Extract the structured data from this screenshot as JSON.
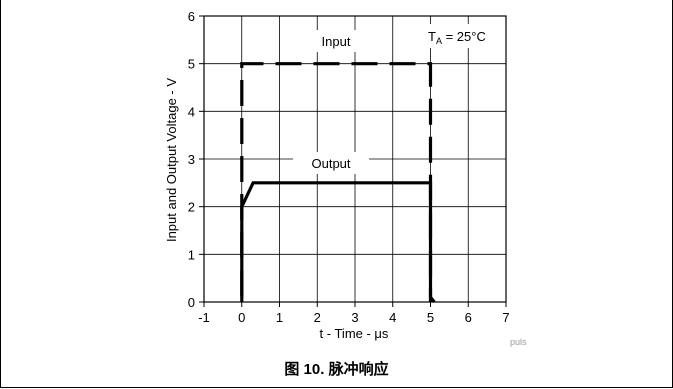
{
  "chart_data": {
    "type": "line",
    "title": "",
    "xlabel": "t - Time - μs",
    "ylabel": "Input and Output Voltage - V",
    "xlim": [
      -1,
      7
    ],
    "ylim": [
      0,
      6
    ],
    "xticks": [
      -1,
      0,
      1,
      2,
      3,
      4,
      5,
      6,
      7
    ],
    "yticks": [
      0,
      1,
      2,
      3,
      4,
      5,
      6
    ],
    "grid": true,
    "series": [
      {
        "name": "Input",
        "style": "dashed",
        "points": [
          [
            0,
            0
          ],
          [
            0,
            5
          ],
          [
            5,
            5
          ],
          [
            5,
            0
          ]
        ]
      },
      {
        "name": "Output",
        "style": "solid",
        "points": [
          [
            0,
            0
          ],
          [
            0,
            2
          ],
          [
            0.3,
            2.5
          ],
          [
            5,
            2.5
          ],
          [
            5,
            0.1
          ],
          [
            5.1,
            0
          ]
        ]
      }
    ],
    "annotations": {
      "condition_main": "T",
      "condition_sub": "A",
      "condition_rest": " = 25°C"
    },
    "watermark": "puls"
  },
  "caption": "图 10. 脉冲响应",
  "colors": {
    "line": "#000000",
    "grid": "#000000",
    "background": "#ffffff"
  }
}
